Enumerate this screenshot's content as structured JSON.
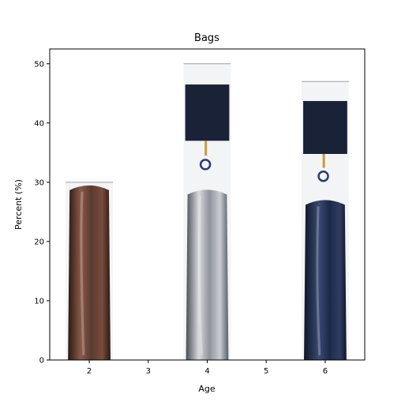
{
  "chart_data": {
    "type": "bar",
    "title": "Bags",
    "xlabel": "Age",
    "ylabel": "Percent (%)",
    "x": [
      2,
      4,
      6
    ],
    "values": [
      30,
      50,
      47
    ],
    "bar_colors": [
      "#5a3a30",
      "#9ea3a8",
      "#1c2a4a"
    ],
    "bar_fill": "bag-photo-pictograph",
    "xlim": [
      1.33,
      6.67
    ],
    "ylim": [
      0,
      52.5
    ],
    "xticks": [
      2,
      3,
      4,
      5,
      6
    ],
    "yticks": [
      0,
      10,
      20,
      30,
      40,
      50
    ],
    "grid": false,
    "legend": "none"
  }
}
